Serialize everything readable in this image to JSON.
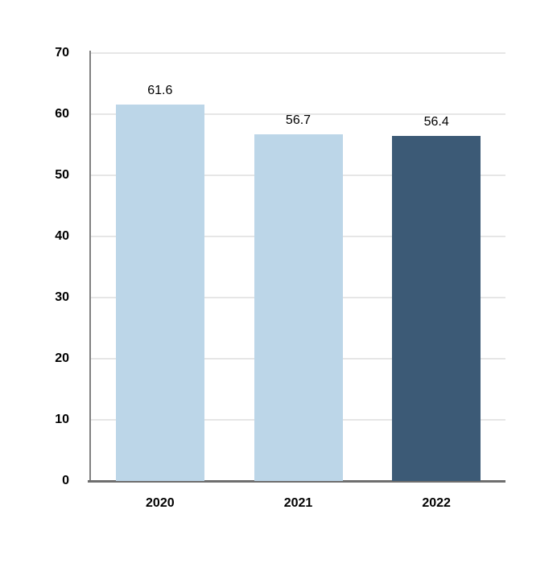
{
  "chart_data": {
    "type": "bar",
    "title": "",
    "categories": [
      "2020",
      "2021",
      "2022"
    ],
    "values": [
      61.6,
      56.7,
      56.4
    ],
    "data_labels": [
      "61.6",
      "56.7",
      "56.4"
    ],
    "bar_colors": [
      "#BCD6E8",
      "#BCD6E8",
      "#3C5A76"
    ],
    "xlabel": "",
    "ylabel": "",
    "ylim": [
      0,
      70
    ],
    "ytick_interval": 10,
    "ytick_labels": [
      "0",
      "10",
      "20",
      "30",
      "40",
      "50",
      "60",
      "70"
    ],
    "grid": true,
    "legend_position": "none"
  },
  "colors": {
    "bar_light": "#BCD6E8",
    "bar_dark": "#3C5A76",
    "gridline": "#E6E6E6",
    "axis_vertical": "#808080",
    "axis_horizontal": "#6E6E6E",
    "label_text": "#000000",
    "background": "#FFFFFF"
  }
}
